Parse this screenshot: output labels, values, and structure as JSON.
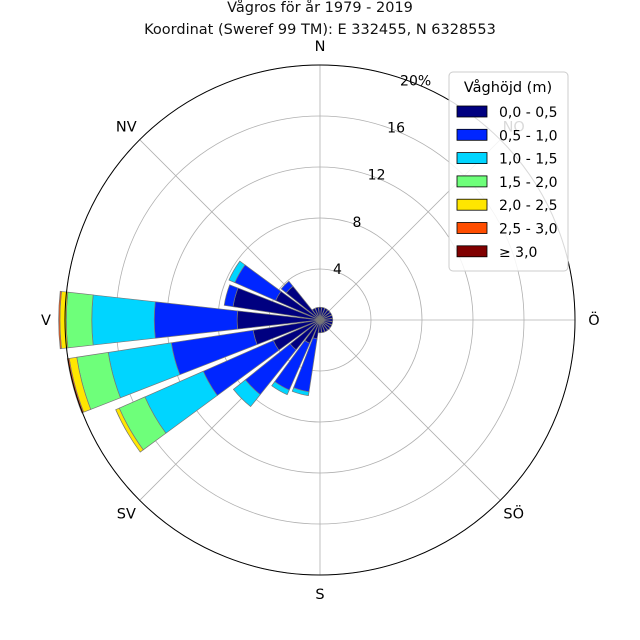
{
  "chart_data": {
    "type": "bar",
    "subtype": "polar-stacked (wind/wave rose)",
    "title": "Vågros för år 1979 - 2019",
    "subtitle": "Koordinat (Sweref 99 TM): E 332455, N 6328553",
    "directions": [
      "N",
      "NO",
      "Ö",
      "SÖ",
      "S",
      "SV",
      "V",
      "NV"
    ],
    "sectors": [
      0,
      15,
      30,
      45,
      60,
      75,
      90,
      105,
      120,
      135,
      150,
      165,
      180,
      195,
      210,
      225,
      240,
      255,
      270,
      285,
      300,
      315,
      330,
      345
    ],
    "radial_ticks": [
      "4",
      "8",
      "12",
      "16",
      "20%"
    ],
    "radial_max": 20,
    "legend": {
      "title": "Våghöjd (m)",
      "position": "top-right",
      "bins": [
        "0,0 - 0,5",
        "0,5 - 1,0",
        "1,0 - 1,5",
        "1,5 - 2,0",
        "2,0 - 2,5",
        "2,5 - 3,0",
        "≥ 3,0"
      ],
      "colors": [
        "#000080",
        "#0026ff",
        "#00d5ff",
        "#6eff7a",
        "#ffe600",
        "#ff4d00",
        "#800000"
      ]
    },
    "grid": true,
    "series": [
      {
        "name": "0,0 - 0,5",
        "values": [
          1.0,
          1.0,
          1.0,
          1.0,
          1.0,
          1.0,
          1.0,
          1.0,
          1.0,
          1.0,
          1.0,
          1.0,
          1.0,
          1.5,
          2.0,
          3.0,
          4.0,
          5.3,
          6.5,
          6.9,
          3.8,
          3.4,
          1.0,
          1.0
        ]
      },
      {
        "name": "0,5 - 1,0",
        "values": [
          0,
          0,
          0,
          0,
          0,
          0,
          0,
          0,
          0,
          0,
          0,
          0,
          0,
          4.2,
          4.0,
          4.5,
          6.0,
          6.5,
          6.5,
          0.7,
          3.5,
          0.5,
          0,
          0
        ]
      },
      {
        "name": "1,0 - 1,5",
        "values": [
          0,
          0,
          0,
          0,
          0,
          0,
          0,
          0,
          0,
          0,
          0,
          0,
          0,
          0.3,
          0.4,
          1.2,
          5.0,
          5.0,
          4.9,
          0,
          0.5,
          0,
          0,
          0
        ]
      },
      {
        "name": "1,5 - 2,0",
        "values": [
          0,
          0,
          0,
          0,
          0,
          0,
          0,
          0,
          0,
          0,
          0,
          0,
          0,
          0,
          0,
          0,
          2.2,
          2.5,
          2.0,
          0,
          0,
          0,
          0,
          0
        ]
      },
      {
        "name": "2,0 - 2,5",
        "values": [
          0,
          0,
          0,
          0,
          0,
          0,
          0,
          0,
          0,
          0,
          0,
          0,
          0,
          0,
          0,
          0,
          0.3,
          0.6,
          0.5,
          0,
          0,
          0,
          0,
          0
        ]
      },
      {
        "name": "2,5 - 3,0",
        "values": [
          0,
          0,
          0,
          0,
          0,
          0,
          0,
          0,
          0,
          0,
          0,
          0,
          0,
          0,
          0,
          0,
          0,
          0.15,
          0.1,
          0,
          0,
          0,
          0,
          0
        ]
      },
      {
        "name": "≥ 3,0",
        "values": [
          0,
          0,
          0,
          0,
          0,
          0,
          0,
          0,
          0,
          0,
          0,
          0,
          0,
          0,
          0,
          0,
          0,
          0,
          0,
          0,
          0,
          0,
          0,
          0
        ]
      }
    ]
  }
}
